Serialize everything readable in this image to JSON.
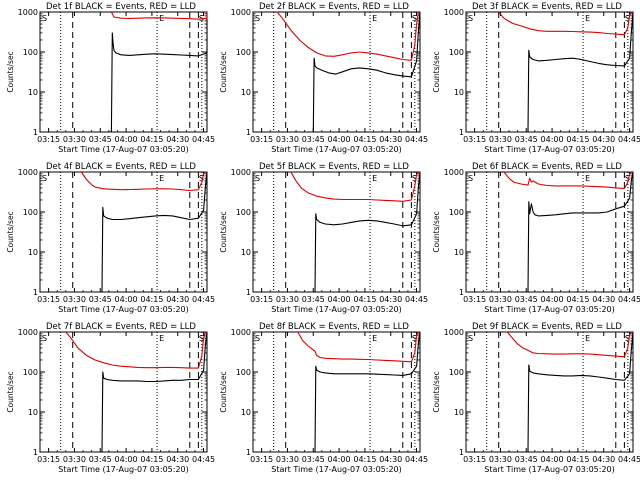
{
  "page": {
    "background": "#ffffff",
    "colors": {
      "axes": "#000000",
      "events": "#000000",
      "lld": "#e00000"
    }
  },
  "chart_data": [
    {
      "type": "line",
      "title": "Det 1f BLACK = Events, RED = LLD",
      "ylabel": "Counts/sec",
      "xlabel": "Start Time (17-Aug-07 03:05:20)",
      "x_ticks": [
        "03:15",
        "03:30",
        "03:45",
        "04:00",
        "04:15",
        "04:30",
        "04:45"
      ],
      "y_scale": "log",
      "ylim": [
        1,
        1000
      ],
      "y_ticks": [
        "1",
        "10",
        "100",
        "1000"
      ],
      "markers": [
        "S",
        "E",
        "S"
      ],
      "series": [
        {
          "name": "Events",
          "color": "#000000",
          "x_min": [
            29.5,
            30,
            30.5,
            31,
            32,
            35,
            40,
            45,
            50,
            55,
            60,
            65,
            70,
            75,
            80,
            85,
            86,
            87
          ],
          "y": [
            1,
            300,
            150,
            110,
            95,
            85,
            82,
            85,
            88,
            90,
            88,
            86,
            84,
            82,
            80,
            95,
            300,
            1000
          ]
        },
        {
          "name": "LLD",
          "color": "#e00000",
          "x_min": [
            29.5,
            30,
            31,
            35,
            40,
            45,
            50,
            55,
            60,
            65,
            70,
            75,
            80,
            85,
            86,
            87
          ],
          "y": [
            1000,
            900,
            750,
            700,
            690,
            700,
            710,
            715,
            710,
            700,
            690,
            680,
            660,
            700,
            900,
            1000
          ]
        }
      ]
    },
    {
      "type": "line",
      "title": "Det 2f BLACK = Events, RED = LLD",
      "ylabel": "Counts/sec",
      "xlabel": "Start Time (17-Aug-07 03:05:20)",
      "x_ticks": [
        "03:15",
        "03:30",
        "03:45",
        "04:00",
        "04:15",
        "04:30",
        "04:45"
      ],
      "y_scale": "log",
      "ylim": [
        1,
        1000
      ],
      "y_ticks": [
        "1",
        "10",
        "100",
        "1000"
      ],
      "markers": [
        "S",
        "E",
        "S"
      ],
      "series": [
        {
          "name": "Events",
          "color": "#000000",
          "x_min": [
            23,
            23.5,
            24,
            25,
            28,
            32,
            36,
            40,
            45,
            50,
            55,
            60,
            65,
            70,
            75,
            80,
            83,
            84,
            85
          ],
          "y": [
            1,
            70,
            45,
            40,
            35,
            30,
            28,
            32,
            38,
            40,
            38,
            35,
            30,
            27,
            25,
            24,
            60,
            300,
            1000
          ]
        },
        {
          "name": "LLD",
          "color": "#e00000",
          "x_min": [
            2,
            5,
            10,
            15,
            20,
            25,
            30,
            35,
            40,
            45,
            50,
            55,
            60,
            65,
            70,
            75,
            80,
            82,
            83,
            84
          ],
          "y": [
            1000,
            700,
            350,
            200,
            130,
            95,
            80,
            78,
            85,
            95,
            100,
            95,
            88,
            80,
            72,
            65,
            62,
            150,
            500,
            1000
          ]
        }
      ]
    },
    {
      "type": "line",
      "title": "Det 3f BLACK = Events, RED = LLD",
      "ylabel": "Counts/sec",
      "xlabel": "Start Time (17-Aug-07 03:05:20)",
      "x_ticks": [
        "03:15",
        "03:30",
        "03:45",
        "04:00",
        "04:15",
        "04:30",
        "04:45"
      ],
      "y_scale": "log",
      "ylim": [
        1,
        1000
      ],
      "y_ticks": [
        "1",
        "10",
        "100",
        "1000"
      ],
      "markers": [
        "S",
        "E",
        "S"
      ],
      "series": [
        {
          "name": "Events",
          "color": "#000000",
          "x_min": [
            24,
            24.5,
            25,
            27,
            30,
            35,
            40,
            45,
            50,
            55,
            60,
            65,
            70,
            75,
            80,
            83,
            84,
            85
          ],
          "y": [
            1,
            110,
            75,
            65,
            60,
            62,
            65,
            68,
            70,
            65,
            58,
            52,
            48,
            46,
            45,
            70,
            300,
            1000
          ]
        },
        {
          "name": "LLD",
          "color": "#e00000",
          "x_min": [
            7,
            10,
            15,
            20,
            25,
            30,
            35,
            40,
            45,
            50,
            55,
            60,
            65,
            70,
            75,
            80,
            82,
            83,
            84
          ],
          "y": [
            1000,
            700,
            520,
            450,
            380,
            340,
            330,
            330,
            330,
            325,
            320,
            315,
            305,
            290,
            280,
            270,
            400,
            800,
            1000
          ]
        }
      ]
    },
    {
      "type": "line",
      "title": "Det 4f BLACK = Events, RED = LLD",
      "ylabel": "Counts/sec",
      "xlabel": "Start Time (17-Aug-07 03:05:20)",
      "x_ticks": [
        "03:15",
        "03:30",
        "03:45",
        "04:00",
        "04:15",
        "04:30",
        "04:45"
      ],
      "y_scale": "log",
      "ylim": [
        1,
        1000
      ],
      "y_ticks": [
        "1",
        "10",
        "100",
        "1000"
      ],
      "markers": [
        "S",
        "E",
        "S"
      ],
      "series": [
        {
          "name": "Events",
          "color": "#000000",
          "x_min": [
            24,
            24.5,
            25,
            27,
            30,
            35,
            40,
            45,
            50,
            55,
            60,
            65,
            70,
            75,
            80,
            83,
            84,
            85
          ],
          "y": [
            1,
            130,
            80,
            70,
            65,
            65,
            68,
            72,
            76,
            80,
            82,
            80,
            72,
            65,
            70,
            110,
            400,
            1000
          ]
        },
        {
          "name": "LLD",
          "color": "#e00000",
          "x_min": [
            12,
            15,
            18,
            20,
            25,
            30,
            35,
            40,
            45,
            50,
            55,
            60,
            65,
            70,
            75,
            80,
            82,
            83,
            84
          ],
          "y": [
            1000,
            650,
            480,
            420,
            380,
            370,
            360,
            365,
            370,
            375,
            380,
            380,
            375,
            360,
            345,
            360,
            550,
            900,
            1000
          ]
        }
      ]
    },
    {
      "type": "line",
      "title": "Det 5f BLACK = Events, RED = LLD",
      "ylabel": "Counts/sec",
      "xlabel": "Start Time (17-Aug-07 03:05:20)",
      "x_ticks": [
        "03:15",
        "03:30",
        "03:45",
        "04:00",
        "04:15",
        "04:30",
        "04:45"
      ],
      "y_scale": "log",
      "ylim": [
        1,
        1000
      ],
      "y_ticks": [
        "1",
        "10",
        "100",
        "1000"
      ],
      "markers": [
        "S",
        "E",
        "S"
      ],
      "series": [
        {
          "name": "Events",
          "color": "#000000",
          "x_min": [
            24,
            24.5,
            25,
            27,
            30,
            35,
            40,
            45,
            50,
            55,
            60,
            65,
            70,
            75,
            80,
            83,
            84,
            85
          ],
          "y": [
            1,
            90,
            65,
            55,
            50,
            48,
            50,
            55,
            60,
            62,
            60,
            55,
            50,
            45,
            48,
            90,
            400,
            1000
          ]
        },
        {
          "name": "LLD",
          "color": "#e00000",
          "x_min": [
            10,
            13,
            16,
            20,
            25,
            30,
            35,
            40,
            45,
            50,
            55,
            60,
            65,
            70,
            75,
            80,
            82,
            83,
            84
          ],
          "y": [
            1000,
            600,
            400,
            300,
            250,
            225,
            210,
            205,
            205,
            205,
            205,
            200,
            195,
            190,
            185,
            200,
            450,
            850,
            1000
          ]
        }
      ]
    },
    {
      "type": "line",
      "title": "Det 6f BLACK = Events, RED = LLD",
      "ylabel": "Counts/sec",
      "xlabel": "Start Time (17-Aug-07 03:05:20)",
      "x_ticks": [
        "03:15",
        "03:30",
        "03:45",
        "04:00",
        "04:15",
        "04:30",
        "04:45"
      ],
      "y_scale": "log",
      "ylim": [
        1,
        1000
      ],
      "y_ticks": [
        "1",
        "10",
        "100",
        "1000"
      ],
      "markers": [
        "S",
        "E",
        "S"
      ],
      "series": [
        {
          "name": "Events",
          "color": "#000000",
          "x_min": [
            24,
            24.5,
            25,
            26,
            27,
            28,
            30,
            35,
            40,
            45,
            50,
            55,
            60,
            65,
            70,
            75,
            80,
            83,
            84,
            85
          ],
          "y": [
            1,
            180,
            90,
            160,
            100,
            85,
            80,
            82,
            85,
            90,
            95,
            95,
            95,
            95,
            100,
            120,
            140,
            220,
            600,
            1000
          ]
        },
        {
          "name": "LLD",
          "color": "#e00000",
          "x_min": [
            10,
            13,
            16,
            20,
            24,
            25,
            26,
            27,
            30,
            35,
            40,
            45,
            50,
            55,
            60,
            65,
            70,
            75,
            80,
            82,
            83,
            84
          ],
          "y": [
            1000,
            700,
            550,
            500,
            470,
            700,
            560,
            600,
            500,
            460,
            450,
            450,
            450,
            450,
            440,
            430,
            420,
            400,
            390,
            550,
            900,
            1000
          ]
        }
      ]
    },
    {
      "type": "line",
      "title": "Det 7f BLACK = Events, RED = LLD",
      "ylabel": "Counts/sec",
      "xlabel": "Start Time (17-Aug-07 03:05:20)",
      "x_ticks": [
        "03:15",
        "03:30",
        "03:45",
        "04:00",
        "04:15",
        "04:30",
        "04:45"
      ],
      "y_scale": "log",
      "ylim": [
        1,
        1000
      ],
      "y_ticks": [
        "1",
        "10",
        "100",
        "1000"
      ],
      "markers": [
        "S",
        "E",
        "S"
      ],
      "series": [
        {
          "name": "Events",
          "color": "#000000",
          "x_min": [
            24,
            24.5,
            25,
            27,
            30,
            35,
            40,
            45,
            50,
            55,
            60,
            65,
            70,
            75,
            80,
            83,
            84,
            85
          ],
          "y": [
            1,
            100,
            70,
            65,
            62,
            60,
            60,
            60,
            58,
            58,
            60,
            62,
            62,
            65,
            65,
            110,
            450,
            1000
          ]
        },
        {
          "name": "LLD",
          "color": "#e00000",
          "x_min": [
            3,
            6,
            10,
            15,
            20,
            25,
            30,
            35,
            40,
            45,
            50,
            55,
            60,
            65,
            70,
            75,
            80,
            82,
            83,
            84
          ],
          "y": [
            1000,
            700,
            400,
            260,
            200,
            170,
            150,
            140,
            135,
            130,
            128,
            128,
            130,
            130,
            128,
            125,
            125,
            250,
            700,
            1000
          ]
        }
      ]
    },
    {
      "type": "line",
      "title": "Det 8f BLACK = Events, RED = LLD",
      "ylabel": "Counts/sec",
      "xlabel": "Start Time (17-Aug-07 03:05:20)",
      "x_ticks": [
        "03:15",
        "03:30",
        "03:45",
        "04:00",
        "04:15",
        "04:30",
        "04:45"
      ],
      "y_scale": "log",
      "ylim": [
        1,
        1000
      ],
      "y_ticks": [
        "1",
        "10",
        "100",
        "1000"
      ],
      "markers": [
        "S",
        "E",
        "S"
      ],
      "series": [
        {
          "name": "Events",
          "color": "#000000",
          "x_min": [
            24,
            24.5,
            25,
            27,
            30,
            35,
            40,
            45,
            50,
            55,
            60,
            65,
            70,
            75,
            80,
            83,
            84,
            85
          ],
          "y": [
            1,
            140,
            110,
            100,
            95,
            90,
            90,
            90,
            90,
            90,
            88,
            86,
            84,
            82,
            90,
            140,
            500,
            1000
          ]
        },
        {
          "name": "LLD",
          "color": "#e00000",
          "x_min": [
            14,
            17,
            20,
            24,
            25,
            27,
            30,
            35,
            40,
            45,
            50,
            55,
            60,
            65,
            70,
            75,
            80,
            82,
            83,
            84
          ],
          "y": [
            1000,
            600,
            450,
            330,
            260,
            230,
            220,
            215,
            210,
            210,
            208,
            205,
            200,
            195,
            190,
            185,
            180,
            300,
            800,
            1000
          ]
        }
      ]
    },
    {
      "type": "line",
      "title": "Det 9f BLACK = Events, RED = LLD",
      "ylabel": "Counts/sec",
      "xlabel": "Start Time (17-Aug-07 03:05:20)",
      "x_ticks": [
        "03:15",
        "03:30",
        "03:45",
        "04:00",
        "04:15",
        "04:30",
        "04:45"
      ],
      "y_scale": "log",
      "ylim": [
        1,
        1000
      ],
      "y_ticks": [
        "1",
        "10",
        "100",
        "1000"
      ],
      "markers": [
        "S",
        "E",
        "S"
      ],
      "series": [
        {
          "name": "Events",
          "color": "#000000",
          "x_min": [
            24,
            24.5,
            25,
            27,
            30,
            35,
            40,
            45,
            50,
            55,
            60,
            65,
            70,
            75,
            80,
            83,
            84,
            85
          ],
          "y": [
            1,
            150,
            105,
            95,
            90,
            85,
            82,
            80,
            80,
            82,
            80,
            75,
            70,
            65,
            62,
            90,
            350,
            1000
          ]
        },
        {
          "name": "LLD",
          "color": "#e00000",
          "x_min": [
            12,
            15,
            18,
            21,
            24,
            25,
            27,
            30,
            35,
            40,
            45,
            50,
            55,
            60,
            65,
            70,
            75,
            80,
            82,
            83,
            84
          ],
          "y": [
            1000,
            700,
            500,
            400,
            350,
            330,
            300,
            290,
            285,
            280,
            280,
            285,
            285,
            280,
            270,
            260,
            250,
            240,
            400,
            850,
            1000
          ]
        }
      ]
    }
  ]
}
